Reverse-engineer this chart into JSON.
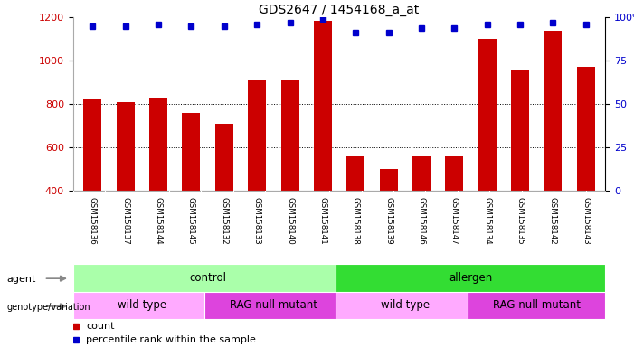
{
  "title": "GDS2647 / 1454168_a_at",
  "samples": [
    "GSM158136",
    "GSM158137",
    "GSM158144",
    "GSM158145",
    "GSM158132",
    "GSM158133",
    "GSM158140",
    "GSM158141",
    "GSM158138",
    "GSM158139",
    "GSM158146",
    "GSM158147",
    "GSM158134",
    "GSM158135",
    "GSM158142",
    "GSM158143"
  ],
  "counts": [
    820,
    810,
    830,
    760,
    710,
    910,
    910,
    1185,
    560,
    500,
    560,
    560,
    1100,
    960,
    1140,
    970
  ],
  "percentiles": [
    95,
    95,
    96,
    95,
    95,
    96,
    97,
    99,
    91,
    91,
    94,
    94,
    96,
    96,
    97,
    96
  ],
  "ylim_left": [
    400,
    1200
  ],
  "ylim_right": [
    0,
    100
  ],
  "yticks_left": [
    400,
    600,
    800,
    1000,
    1200
  ],
  "yticks_right": [
    0,
    25,
    50,
    75,
    100
  ],
  "bar_color": "#cc0000",
  "dot_color": "#0000cc",
  "grid_color": "#000000",
  "agent_groups": [
    {
      "label": "control",
      "start": 0,
      "end": 8,
      "color": "#aaffaa"
    },
    {
      "label": "allergen",
      "start": 8,
      "end": 16,
      "color": "#33dd33"
    }
  ],
  "genotype_groups": [
    {
      "label": "wild type",
      "start": 0,
      "end": 4,
      "color": "#ffaaff"
    },
    {
      "label": "RAG null mutant",
      "start": 4,
      "end": 8,
      "color": "#dd44dd"
    },
    {
      "label": "wild type",
      "start": 8,
      "end": 12,
      "color": "#ffaaff"
    },
    {
      "label": "RAG null mutant",
      "start": 12,
      "end": 16,
      "color": "#dd44dd"
    }
  ],
  "legend_count_color": "#cc0000",
  "legend_dot_color": "#0000cc",
  "background_color": "#ffffff",
  "label_row_color": "#cccccc",
  "label_row_border": "#888888"
}
